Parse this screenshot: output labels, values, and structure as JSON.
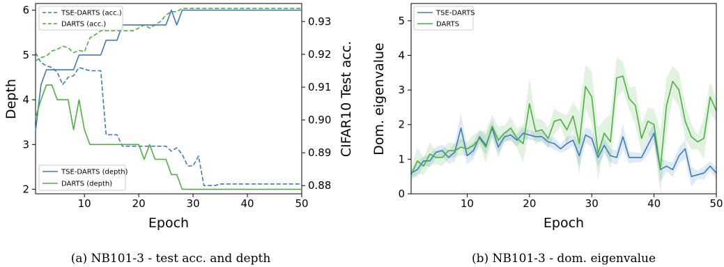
{
  "chart_data": [
    {
      "type": "line",
      "caption": "(a) NB101-3 - test acc. and depth",
      "xlabel": "Epoch",
      "ylabel": "Depth",
      "ylabel_right": "CIFAR10 Test acc.",
      "xlim": [
        1,
        50
      ],
      "ylim": [
        1.9,
        6.15
      ],
      "ylim_right": [
        0.8775,
        0.9355
      ],
      "xticks": [
        "10",
        "20",
        "30",
        "40",
        "50"
      ],
      "yticks": [
        "2",
        "3",
        "4",
        "5",
        "6"
      ],
      "yticks_right": [
        "0.88",
        "0.89",
        "0.90",
        "0.91",
        "0.92",
        "0.93"
      ],
      "legend_top": "upper-left",
      "legend_bottom": "lower-left",
      "colors": {
        "tse": "#3b7bb8",
        "darts": "#4caf3e"
      },
      "x": [
        1,
        2,
        3,
        4,
        5,
        6,
        7,
        8,
        9,
        10,
        11,
        12,
        13,
        14,
        15,
        16,
        17,
        18,
        19,
        20,
        21,
        22,
        23,
        24,
        25,
        26,
        27,
        28,
        29,
        30,
        31,
        32,
        33,
        34,
        35,
        36,
        37,
        38,
        39,
        40,
        41,
        42,
        43,
        44,
        45,
        46,
        47,
        48,
        49,
        50
      ],
      "series": [
        {
          "name": "TSE-DARTS (acc.)",
          "axis": "right",
          "style": "dashed",
          "color": "tse",
          "values": [
            0.9205,
            0.9175,
            0.9165,
            0.916,
            0.9145,
            0.9108,
            0.913,
            0.9135,
            0.916,
            0.9155,
            0.915,
            0.915,
            0.915,
            0.8955,
            0.8955,
            0.8955,
            0.892,
            0.892,
            0.892,
            0.892,
            0.892,
            0.892,
            0.892,
            0.892,
            0.892,
            0.8905,
            0.8915,
            0.8895,
            0.886,
            0.886,
            0.889,
            0.88,
            0.88,
            0.88,
            0.8805,
            0.8805,
            0.8805,
            0.8805,
            0.8805,
            0.8805,
            0.8805,
            0.8805,
            0.8805,
            0.8805,
            0.8805,
            0.8805,
            0.8805,
            0.8805,
            0.8805,
            0.8805
          ]
        },
        {
          "name": "DARTS (acc.)",
          "axis": "right",
          "style": "dashed",
          "color": "darts",
          "values": [
            0.918,
            0.919,
            0.9195,
            0.921,
            0.9215,
            0.9225,
            0.922,
            0.9205,
            0.9212,
            0.9208,
            0.925,
            0.926,
            0.9272,
            0.9272,
            0.9272,
            0.9272,
            0.9272,
            0.9272,
            0.9272,
            0.928,
            0.929,
            0.928,
            0.929,
            0.93,
            0.932,
            0.933,
            0.933,
            0.934,
            0.934,
            0.934,
            0.934,
            0.934,
            0.934,
            0.934,
            0.934,
            0.934,
            0.934,
            0.934,
            0.934,
            0.934,
            0.934,
            0.934,
            0.934,
            0.934,
            0.934,
            0.934,
            0.934,
            0.934,
            0.934,
            0.934
          ]
        },
        {
          "name": "TSE-DARTS (depth)",
          "axis": "left",
          "style": "solid",
          "color": "tse",
          "values": [
            3.3,
            4.33,
            4.67,
            4.67,
            4.67,
            4.67,
            4.67,
            4.67,
            5.0,
            5.0,
            5.0,
            5.0,
            5.0,
            5.33,
            5.33,
            5.33,
            5.67,
            5.67,
            5.67,
            5.67,
            5.67,
            5.67,
            5.67,
            5.67,
            5.67,
            6.0,
            5.67,
            6.0,
            6.0,
            6.0,
            6.0,
            6.0,
            6.0,
            6.0,
            6.0,
            6.0,
            6.0,
            6.0,
            6.0,
            6.0,
            6.0,
            6.0,
            6.0,
            6.0,
            6.0,
            6.0,
            6.0,
            6.0,
            6.0,
            6.0
          ]
        },
        {
          "name": "DARTS (depth)",
          "axis": "left",
          "style": "solid",
          "color": "darts",
          "values": [
            3.6,
            4.0,
            4.33,
            4.33,
            4.0,
            4.0,
            4.0,
            3.33,
            4.0,
            3.33,
            3.0,
            3.0,
            3.0,
            3.0,
            3.0,
            3.0,
            3.0,
            3.0,
            3.0,
            3.0,
            2.67,
            3.0,
            2.67,
            2.67,
            2.67,
            2.33,
            2.33,
            2.0,
            2.0,
            2.0,
            2.0,
            2.0,
            2.0,
            2.0,
            2.0,
            2.0,
            2.0,
            2.0,
            2.0,
            2.0,
            2.0,
            2.0,
            2.0,
            2.0,
            2.0,
            2.0,
            2.0,
            2.0,
            2.0,
            2.0
          ]
        }
      ]
    },
    {
      "type": "line",
      "caption": "(b) NB101-3 - dom. eigenvalue",
      "xlabel": "Epoch",
      "ylabel": "Dom. eigenvalue",
      "xlim": [
        1,
        50
      ],
      "ylim": [
        0,
        5.5
      ],
      "xticks": [
        "10",
        "20",
        "30",
        "40",
        "50"
      ],
      "yticks": [
        "0",
        "1",
        "2",
        "3",
        "4",
        "5"
      ],
      "legend": "upper-left",
      "x": [
        1,
        2,
        3,
        4,
        5,
        6,
        7,
        8,
        9,
        10,
        11,
        12,
        13,
        14,
        15,
        16,
        17,
        18,
        19,
        20,
        21,
        22,
        23,
        24,
        25,
        26,
        27,
        28,
        29,
        30,
        31,
        32,
        33,
        34,
        35,
        36,
        37,
        38,
        39,
        40,
        41,
        42,
        43,
        44,
        45,
        46,
        47,
        48,
        49,
        50
      ],
      "series": [
        {
          "name": "TSE-DARTS",
          "color": "tse",
          "band_spread": 0.4,
          "values": [
            0.6,
            0.7,
            0.95,
            0.95,
            1.2,
            1.25,
            1.05,
            1.2,
            1.9,
            1.1,
            1.25,
            1.65,
            1.4,
            1.9,
            1.35,
            1.65,
            1.7,
            1.55,
            1.75,
            1.7,
            1.65,
            1.65,
            1.5,
            1.45,
            1.3,
            1.45,
            1.55,
            1.1,
            1.7,
            1.6,
            1.05,
            1.4,
            1.1,
            1.05,
            1.65,
            1.05,
            1.05,
            1.05,
            1.4,
            1.75,
            0.7,
            0.8,
            0.7,
            1.1,
            1.3,
            0.5,
            0.55,
            0.6,
            0.8,
            0.6
          ]
        },
        {
          "name": "DARTS",
          "color": "darts",
          "band_spread": 0.6,
          "values": [
            0.55,
            0.95,
            0.8,
            1.15,
            1.05,
            1.05,
            1.25,
            1.25,
            1.35,
            1.3,
            1.4,
            1.6,
            1.35,
            1.95,
            1.55,
            1.75,
            1.9,
            1.6,
            1.45,
            2.6,
            1.8,
            1.85,
            1.6,
            2.1,
            2.15,
            1.85,
            2.25,
            1.45,
            3.1,
            2.8,
            1.15,
            1.75,
            1.5,
            3.35,
            3.4,
            2.75,
            2.55,
            1.6,
            2.1,
            2.0,
            0.7,
            2.55,
            3.25,
            3.0,
            2.1,
            1.65,
            1.5,
            1.6,
            2.8,
            2.4
          ]
        }
      ]
    }
  ],
  "colors": {
    "tse": "#3b7bb8",
    "darts": "#4caf3e"
  }
}
